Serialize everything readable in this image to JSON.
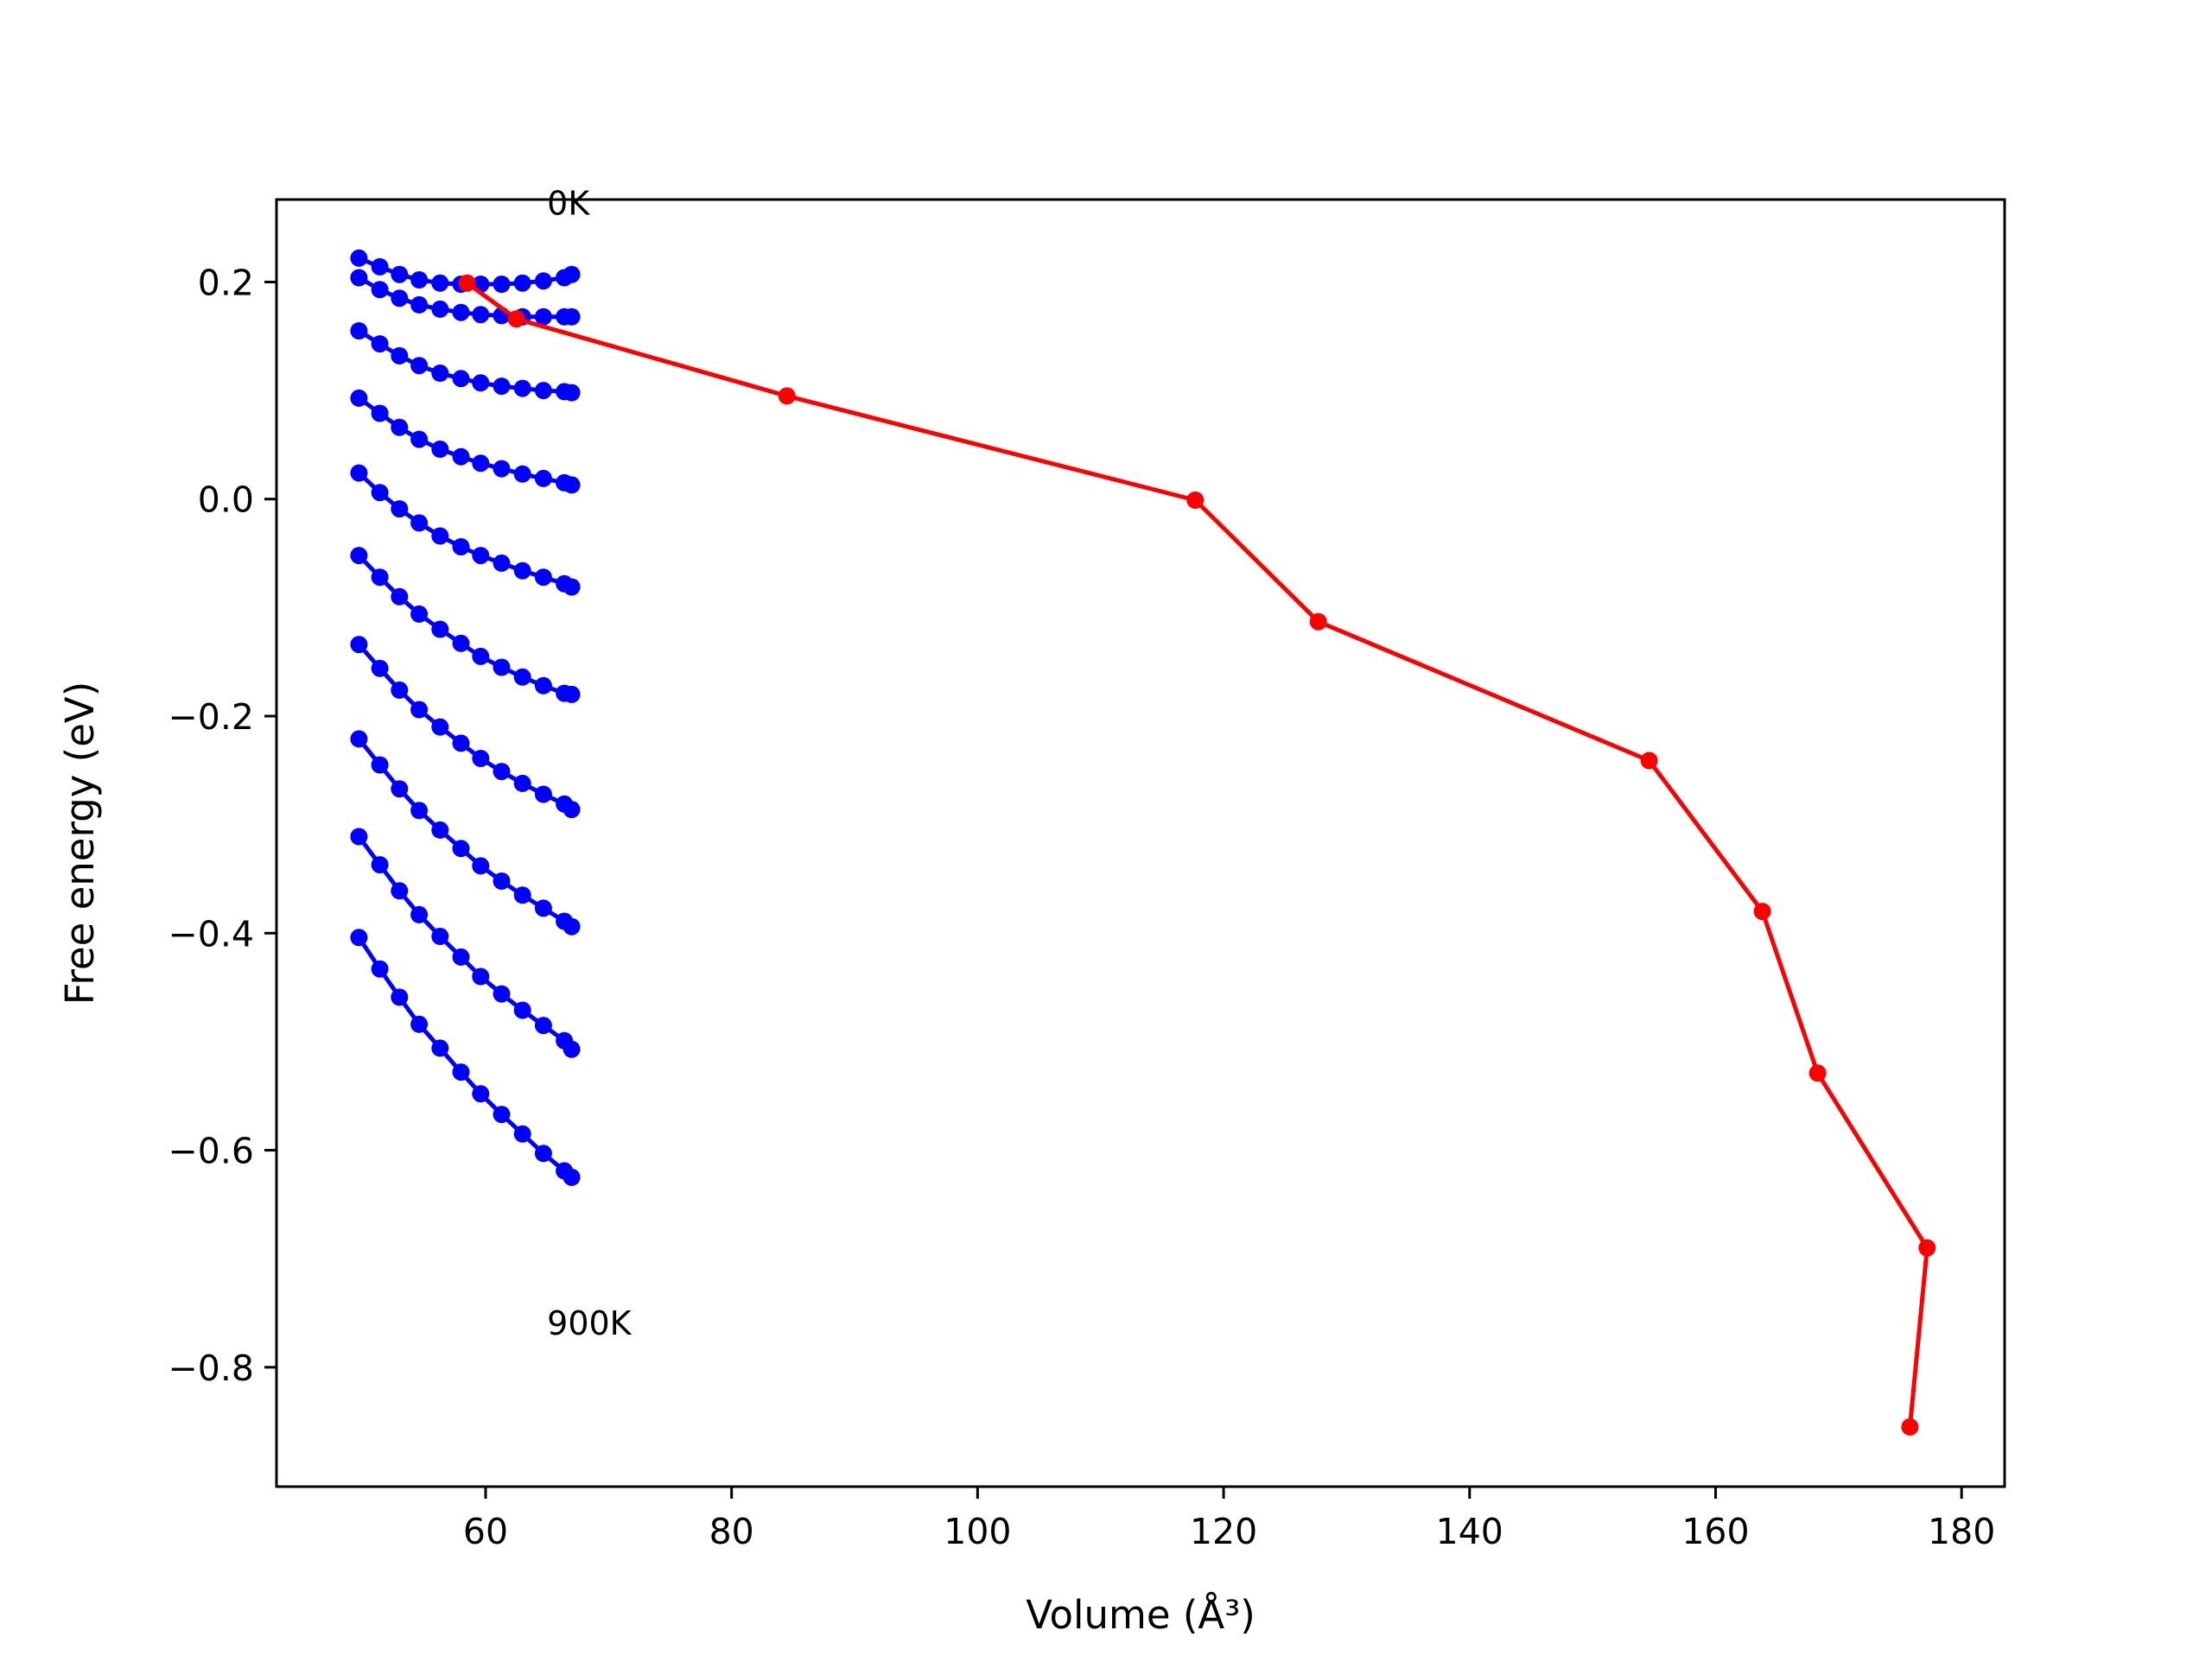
{
  "chart_data": {
    "type": "line",
    "title": "",
    "xlabel": "Volume (Å³)",
    "ylabel": "Free energy (eV)",
    "xlim": [
      43,
      183.5
    ],
    "ylim": [
      -0.91,
      0.276
    ],
    "x_ticks": [
      {
        "value": 60,
        "label": "60"
      },
      {
        "value": 80,
        "label": "80"
      },
      {
        "value": 100,
        "label": "100"
      },
      {
        "value": 120,
        "label": "120"
      },
      {
        "value": 140,
        "label": "140"
      },
      {
        "value": 160,
        "label": "160"
      },
      {
        "value": 180,
        "label": "180"
      }
    ],
    "y_ticks": [
      {
        "value": 0.2,
        "label": "0.2"
      },
      {
        "value": 0.0,
        "label": "0.0"
      },
      {
        "value": -0.2,
        "label": "−0.2"
      },
      {
        "value": -0.4,
        "label": "−0.4"
      },
      {
        "value": -0.6,
        "label": "−0.6"
      },
      {
        "value": -0.8,
        "label": "−0.8"
      }
    ],
    "grid": false,
    "annotations": [
      {
        "text": "0K",
        "x": 65,
        "y": 0.262
      },
      {
        "text": "900K",
        "x": 65,
        "y": -0.77
      }
    ],
    "series": [
      {
        "x": [
          49.7,
          51.4,
          53.0,
          54.6,
          56.3,
          58.0,
          59.6,
          61.3,
          63.0,
          64.7,
          66.4,
          67.0
        ],
        "y": [
          0.222,
          0.214,
          0.207,
          0.202,
          0.199,
          0.198,
          0.198,
          0.198,
          0.199,
          0.201,
          0.204,
          0.207
        ],
        "color": "#0000ff",
        "marker": "circle"
      },
      {
        "x": [
          49.7,
          51.4,
          53.0,
          54.6,
          56.3,
          58.0,
          59.6,
          61.3,
          63.0,
          64.7,
          66.4,
          67.0
        ],
        "y": [
          0.204,
          0.193,
          0.185,
          0.179,
          0.175,
          0.172,
          0.17,
          0.169,
          0.168,
          0.168,
          0.168,
          0.168
        ],
        "color": "#0000ff",
        "marker": "circle"
      },
      {
        "x": [
          49.7,
          51.4,
          53.0,
          54.6,
          56.3,
          58.0,
          59.6,
          61.3,
          63.0,
          64.7,
          66.4,
          67.0
        ],
        "y": [
          0.155,
          0.143,
          0.132,
          0.123,
          0.116,
          0.111,
          0.107,
          0.104,
          0.102,
          0.1,
          0.099,
          0.098
        ],
        "color": "#0000ff",
        "marker": "circle"
      },
      {
        "x": [
          49.7,
          51.4,
          53.0,
          54.6,
          56.3,
          58.0,
          59.6,
          61.3,
          63.0,
          64.7,
          66.4,
          67.0
        ],
        "y": [
          0.093,
          0.079,
          0.066,
          0.055,
          0.046,
          0.039,
          0.033,
          0.028,
          0.023,
          0.019,
          0.015,
          0.013
        ],
        "color": "#0000ff",
        "marker": "circle"
      },
      {
        "x": [
          49.7,
          51.4,
          53.0,
          54.6,
          56.3,
          58.0,
          59.6,
          61.3,
          63.0,
          64.7,
          66.4,
          67.0
        ],
        "y": [
          0.024,
          0.006,
          -0.009,
          -0.022,
          -0.034,
          -0.044,
          -0.052,
          -0.059,
          -0.066,
          -0.072,
          -0.078,
          -0.081
        ],
        "color": "#0000ff",
        "marker": "circle"
      },
      {
        "x": [
          49.7,
          51.4,
          53.0,
          54.6,
          56.3,
          58.0,
          59.6,
          61.3,
          63.0,
          64.7,
          66.4,
          67.0
        ],
        "y": [
          -0.052,
          -0.072,
          -0.09,
          -0.106,
          -0.12,
          -0.133,
          -0.145,
          -0.155,
          -0.164,
          -0.172,
          -0.179,
          -0.18
        ],
        "color": "#0000ff",
        "marker": "circle"
      },
      {
        "x": [
          49.7,
          51.4,
          53.0,
          54.6,
          56.3,
          58.0,
          59.6,
          61.3,
          63.0,
          64.7,
          66.4,
          67.0
        ],
        "y": [
          -0.134,
          -0.156,
          -0.176,
          -0.194,
          -0.21,
          -0.225,
          -0.239,
          -0.251,
          -0.262,
          -0.272,
          -0.281,
          -0.286
        ],
        "color": "#0000ff",
        "marker": "circle"
      },
      {
        "x": [
          49.7,
          51.4,
          53.0,
          54.6,
          56.3,
          58.0,
          59.6,
          61.3,
          63.0,
          64.7,
          66.4,
          67.0
        ],
        "y": [
          -0.221,
          -0.245,
          -0.267,
          -0.287,
          -0.305,
          -0.322,
          -0.338,
          -0.352,
          -0.365,
          -0.377,
          -0.389,
          -0.394
        ],
        "color": "#0000ff",
        "marker": "circle"
      },
      {
        "x": [
          49.7,
          51.4,
          53.0,
          54.6,
          56.3,
          58.0,
          59.6,
          61.3,
          63.0,
          64.7,
          66.4,
          67.0
        ],
        "y": [
          -0.311,
          -0.337,
          -0.361,
          -0.383,
          -0.403,
          -0.422,
          -0.44,
          -0.456,
          -0.471,
          -0.485,
          -0.499,
          -0.507
        ],
        "color": "#0000ff",
        "marker": "circle"
      },
      {
        "x": [
          49.7,
          51.4,
          53.0,
          54.6,
          56.3,
          58.0,
          59.6,
          61.3,
          63.0,
          64.7,
          66.4,
          67.0
        ],
        "y": [
          -0.404,
          -0.433,
          -0.459,
          -0.484,
          -0.506,
          -0.528,
          -0.548,
          -0.567,
          -0.585,
          -0.603,
          -0.619,
          -0.625
        ],
        "color": "#0000ff",
        "marker": "circle"
      },
      {
        "x": [
          58.5,
          62.5,
          84.5,
          117.7,
          127.7,
          154.6,
          163.8,
          168.3,
          177.2,
          175.8
        ],
        "y": [
          0.199,
          0.166,
          0.095,
          -0.001,
          -0.113,
          -0.241,
          -0.38,
          -0.529,
          -0.69,
          -0.855
        ],
        "color": "#ff0000",
        "marker": "circle"
      }
    ]
  }
}
